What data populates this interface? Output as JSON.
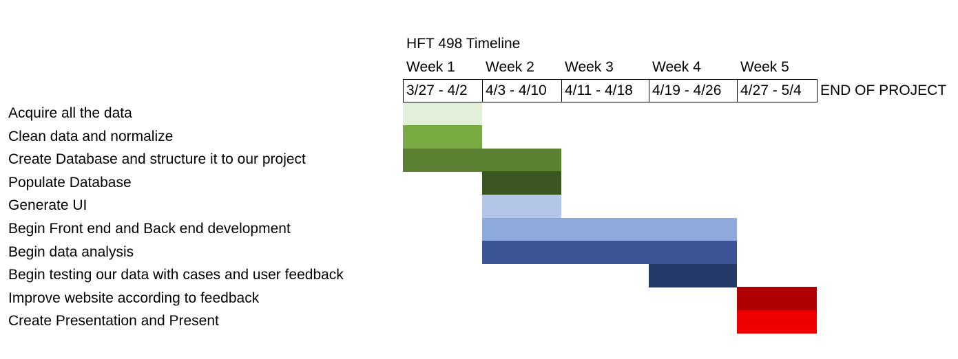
{
  "chart_data": {
    "type": "gantt",
    "title": "HFT 498 Timeline",
    "weeks": [
      {
        "label": "Week 1",
        "dates": "3/27 - 4/2"
      },
      {
        "label": "Week 2",
        "dates": "4/3 - 4/10"
      },
      {
        "label": "Week 3",
        "dates": "4/11 - 4/18"
      },
      {
        "label": "Week 4",
        "dates": "4/19 - 4/26"
      },
      {
        "label": "Week 5",
        "dates": "4/27 - 5/4"
      }
    ],
    "end_label": "END OF PROJECT",
    "tasks": [
      {
        "name": "Acquire all the data",
        "start_week": 1,
        "end_week": 1,
        "color": "#e2efd9"
      },
      {
        "name": "Clean data and normalize",
        "start_week": 1,
        "end_week": 1,
        "color": "#78aa41"
      },
      {
        "name": "Create Database and structure it to our project",
        "start_week": 1,
        "end_week": 2,
        "color": "#5c8132"
      },
      {
        "name": "Populate Database",
        "start_week": 2,
        "end_week": 2,
        "color": "#3c5621"
      },
      {
        "name": "Generate UI",
        "start_week": 2,
        "end_week": 2,
        "color": "#b4c6e7"
      },
      {
        "name": "Begin Front end and Back end development",
        "start_week": 2,
        "end_week": 4,
        "color": "#8eaadb"
      },
      {
        "name": "Begin data analysis",
        "start_week": 2,
        "end_week": 4,
        "color": "#3b5597"
      },
      {
        "name": "Begin testing our data with cases and user feedback",
        "start_week": 4,
        "end_week": 4,
        "color": "#243a68"
      },
      {
        "name": "Improve website according to feedback",
        "start_week": 5,
        "end_week": 5,
        "color": "#b00000"
      },
      {
        "name": "Create Presentation and Present",
        "start_week": 5,
        "end_week": 5,
        "color": "#ee0000"
      }
    ]
  }
}
